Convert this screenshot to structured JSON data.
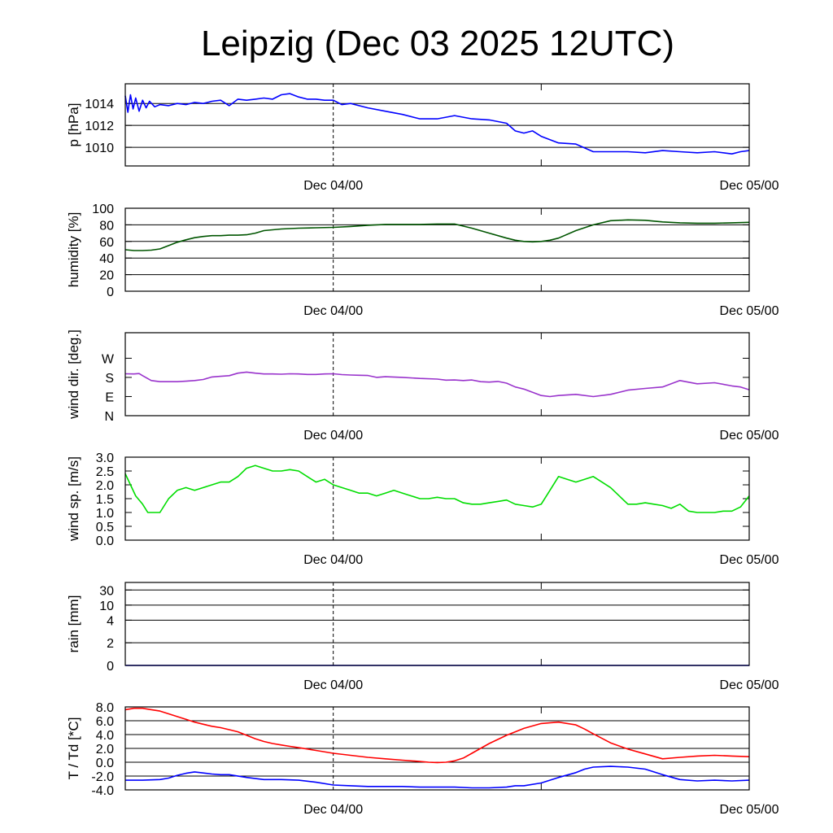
{
  "title": "Leipzig (Dec 03 2025 12UTC)",
  "x_axis": {
    "unit": "hours since Dec 03 12UTC",
    "range": [
      0,
      36
    ],
    "date_labels": [
      {
        "hour": 12,
        "label": "Dec 04/00"
      },
      {
        "hour": 36,
        "label": "Dec 05/00"
      }
    ],
    "now_marker_hour": 12,
    "minor_tick_hour": 24
  },
  "chart_data": [
    {
      "id": "pressure",
      "type": "line",
      "ylabel": "p [hPa]",
      "ylim": [
        1008.3,
        1015.8
      ],
      "yticks": [
        {
          "v": 1010,
          "l": "1010"
        },
        {
          "v": 1012,
          "l": "1012"
        },
        {
          "v": 1014,
          "l": "1014"
        }
      ],
      "grid_y": [
        1010,
        1012,
        1014
      ],
      "series": [
        {
          "name": "pressure",
          "color": "#0000ff",
          "x": [
            0,
            0.15,
            0.3,
            0.45,
            0.6,
            0.8,
            1,
            1.2,
            1.4,
            1.7,
            2,
            2.5,
            3,
            3.5,
            4,
            4.5,
            5,
            5.5,
            6,
            6.5,
            7,
            7.5,
            8,
            8.5,
            9,
            9.5,
            10,
            10.5,
            11,
            11.5,
            12,
            12.5,
            13,
            14,
            15,
            16,
            17,
            18,
            19,
            20,
            21,
            22,
            22.5,
            23,
            23.5,
            24,
            25,
            26,
            27,
            28,
            29,
            30,
            31,
            32,
            33,
            34,
            35,
            35.5,
            36
          ],
          "y": [
            1014.7,
            1013.2,
            1014.8,
            1013.5,
            1014.5,
            1013.3,
            1014.3,
            1013.6,
            1014.2,
            1013.7,
            1013.9,
            1013.8,
            1014.0,
            1013.9,
            1014.1,
            1014.0,
            1014.2,
            1014.3,
            1013.8,
            1014.4,
            1014.3,
            1014.4,
            1014.5,
            1014.4,
            1014.8,
            1014.9,
            1014.6,
            1014.4,
            1014.4,
            1014.3,
            1014.3,
            1013.9,
            1014.0,
            1013.6,
            1013.3,
            1013.0,
            1012.6,
            1012.6,
            1012.9,
            1012.6,
            1012.5,
            1012.2,
            1011.5,
            1011.3,
            1011.5,
            1011.0,
            1010.4,
            1010.3,
            1009.6,
            1009.6,
            1009.6,
            1009.5,
            1009.7,
            1009.6,
            1009.5,
            1009.6,
            1009.4,
            1009.6,
            1009.7
          ]
        }
      ]
    },
    {
      "id": "humidity",
      "type": "line",
      "ylabel": "humidity [%]",
      "ylim": [
        0,
        100
      ],
      "yticks": [
        {
          "v": 0,
          "l": "0"
        },
        {
          "v": 20,
          "l": "20"
        },
        {
          "v": 40,
          "l": "40"
        },
        {
          "v": 60,
          "l": "60"
        },
        {
          "v": 80,
          "l": "80"
        },
        {
          "v": 100,
          "l": "100"
        }
      ],
      "grid_y": [
        20,
        40,
        60,
        80
      ],
      "series": [
        {
          "name": "humidity",
          "color": "#005500",
          "x": [
            0,
            0.5,
            1,
            1.5,
            2,
            2.5,
            3,
            3.5,
            4,
            4.5,
            5,
            5.5,
            6,
            6.5,
            7,
            7.5,
            8,
            9,
            10,
            11,
            12,
            13,
            14,
            15,
            16,
            17,
            18,
            19,
            20,
            21,
            22,
            22.5,
            23,
            23.5,
            24,
            24.5,
            25,
            26,
            27,
            28,
            29,
            30,
            31,
            32,
            33,
            34,
            35,
            36
          ],
          "y": [
            50,
            49,
            49,
            49.5,
            51,
            55,
            59,
            62,
            64.5,
            66,
            67,
            67,
            67.5,
            67.5,
            68,
            70,
            73,
            75,
            76,
            76.5,
            77,
            78,
            79.5,
            80.5,
            80.5,
            80.5,
            81,
            81,
            76,
            70,
            64,
            61.5,
            60,
            59.5,
            60,
            61.5,
            64,
            73,
            80,
            85,
            86,
            85.5,
            83.5,
            82.5,
            82,
            82,
            82.5,
            83
          ]
        }
      ]
    },
    {
      "id": "wind_dir",
      "type": "line",
      "ylabel": "wind dir. [deg.]",
      "ylim": [
        0,
        390
      ],
      "yticks": [
        {
          "v": 0,
          "l": "N"
        },
        {
          "v": 90,
          "l": "E"
        },
        {
          "v": 180,
          "l": "S"
        },
        {
          "v": 270,
          "l": "W"
        }
      ],
      "grid_y": [],
      "series": [
        {
          "name": "wind direction",
          "color": "#9933cc",
          "x": [
            0,
            0.5,
            0.8,
            1,
            1.5,
            2,
            2.5,
            3,
            3.5,
            4,
            4.5,
            5,
            5.5,
            6,
            6.5,
            7,
            7.5,
            8,
            8.5,
            9,
            9.5,
            10,
            10.5,
            11,
            11.5,
            12,
            12.5,
            13,
            13.5,
            14,
            14.5,
            15,
            16,
            17,
            18,
            18.5,
            19,
            19.5,
            20,
            20.5,
            21,
            21.5,
            22,
            22.5,
            23,
            23.5,
            24,
            24.5,
            25,
            26,
            27,
            28,
            29,
            30,
            31,
            31.5,
            32,
            33,
            34,
            35,
            35.5,
            36
          ],
          "y": [
            197,
            196,
            198,
            188,
            165,
            160,
            160,
            160,
            162,
            165,
            170,
            182,
            185,
            188,
            200,
            205,
            200,
            196,
            196,
            195,
            197,
            196,
            194,
            194,
            196,
            197,
            193,
            191,
            190,
            189,
            180,
            183,
            180,
            175,
            172,
            167,
            168,
            165,
            168,
            160,
            158,
            161,
            153,
            135,
            125,
            110,
            95,
            90,
            95,
            100,
            90,
            100,
            120,
            128,
            135,
            150,
            165,
            150,
            155,
            140,
            135,
            122
          ]
        }
      ]
    },
    {
      "id": "wind_speed",
      "type": "line",
      "ylabel": "wind sp. [m/s]",
      "ylim": [
        0,
        3
      ],
      "yticks": [
        {
          "v": 0,
          "l": "0.0"
        },
        {
          "v": 0.5,
          "l": "0.5"
        },
        {
          "v": 1,
          "l": "1.0"
        },
        {
          "v": 1.5,
          "l": "1.5"
        },
        {
          "v": 2,
          "l": "2.0"
        },
        {
          "v": 2.5,
          "l": "2.5"
        },
        {
          "v": 3,
          "l": "3.0"
        }
      ],
      "grid_y": [],
      "series": [
        {
          "name": "wind speed",
          "color": "#00dd00",
          "x": [
            0,
            0.3,
            0.6,
            1,
            1.3,
            1.6,
            2,
            2.5,
            3,
            3.5,
            4,
            4.5,
            5,
            5.5,
            6,
            6.5,
            7,
            7.5,
            8,
            8.5,
            9,
            9.5,
            10,
            10.5,
            11,
            11.5,
            12,
            12.5,
            13,
            13.5,
            14,
            14.5,
            15,
            15.5,
            16,
            16.5,
            17,
            17.5,
            18,
            18.5,
            19,
            19.5,
            20,
            20.5,
            21,
            21.5,
            22,
            22.5,
            23,
            23.5,
            24,
            24.5,
            25,
            25.5,
            26,
            26.5,
            27,
            27.5,
            28,
            28.5,
            29,
            29.5,
            30,
            30.5,
            31,
            31.5,
            32,
            32.5,
            33,
            33.5,
            34,
            34.5,
            35,
            35.5,
            36
          ],
          "y": [
            2.4,
            2.0,
            1.6,
            1.3,
            1.0,
            1.0,
            1.0,
            1.5,
            1.8,
            1.9,
            1.8,
            1.9,
            2.0,
            2.1,
            2.1,
            2.3,
            2.6,
            2.7,
            2.6,
            2.5,
            2.5,
            2.55,
            2.5,
            2.3,
            2.1,
            2.2,
            2.0,
            1.9,
            1.8,
            1.7,
            1.7,
            1.6,
            1.7,
            1.8,
            1.7,
            1.6,
            1.5,
            1.5,
            1.55,
            1.5,
            1.5,
            1.35,
            1.3,
            1.3,
            1.35,
            1.4,
            1.45,
            1.3,
            1.25,
            1.2,
            1.3,
            1.8,
            2.3,
            2.2,
            2.1,
            2.2,
            2.3,
            2.1,
            1.9,
            1.6,
            1.3,
            1.3,
            1.35,
            1.3,
            1.25,
            1.15,
            1.3,
            1.05,
            1.0,
            1.0,
            1.0,
            1.05,
            1.05,
            1.2,
            1.6
          ]
        }
      ]
    },
    {
      "id": "rain",
      "type": "line",
      "ylabel": "rain [mm]",
      "ylim": [
        0,
        33
      ],
      "yticks": [
        {
          "v": 0,
          "l": "0"
        },
        {
          "v": 9,
          "l": "2"
        },
        {
          "v": 18,
          "l": "4"
        },
        {
          "v": 24,
          "l": "10"
        },
        {
          "v": 30,
          "l": "30"
        }
      ],
      "grid_y": [
        9,
        18,
        24,
        30
      ],
      "series": [
        {
          "name": "rain",
          "color": "#0000ff",
          "x": [
            0,
            36
          ],
          "y": [
            0,
            0
          ]
        }
      ]
    },
    {
      "id": "temperature",
      "type": "line",
      "ylabel": "T / Td [*C]",
      "ylim": [
        -4,
        8
      ],
      "yticks": [
        {
          "v": -4,
          "l": "-4.0"
        },
        {
          "v": -2,
          "l": "-2.0"
        },
        {
          "v": 0,
          "l": "0.0"
        },
        {
          "v": 2,
          "l": "2.0"
        },
        {
          "v": 4,
          "l": "4.0"
        },
        {
          "v": 6,
          "l": "6.0"
        },
        {
          "v": 8,
          "l": "8.0"
        }
      ],
      "grid_y": [
        -2,
        0,
        2,
        4,
        6
      ],
      "series": [
        {
          "name": "T",
          "color": "#ff0000",
          "x": [
            0,
            0.5,
            1,
            1.5,
            2,
            2.5,
            3,
            3.5,
            4,
            4.5,
            5,
            5.5,
            6,
            6.5,
            7,
            7.5,
            8,
            8.5,
            9,
            9.5,
            10,
            11,
            12,
            13,
            14,
            15,
            16,
            17,
            17.5,
            18,
            18.5,
            19,
            19.5,
            20,
            21,
            22,
            23,
            24,
            25,
            26,
            26.5,
            27,
            28,
            29,
            30,
            31,
            32,
            33,
            34,
            35,
            36
          ],
          "y": [
            7.6,
            7.8,
            7.8,
            7.6,
            7.4,
            7.0,
            6.6,
            6.2,
            5.8,
            5.5,
            5.2,
            5.0,
            4.7,
            4.4,
            3.9,
            3.4,
            3.0,
            2.7,
            2.5,
            2.3,
            2.1,
            1.7,
            1.3,
            1.0,
            0.7,
            0.5,
            0.3,
            0.1,
            0.0,
            -0.05,
            0.0,
            0.2,
            0.6,
            1.3,
            2.7,
            3.9,
            4.9,
            5.6,
            5.8,
            5.4,
            4.8,
            4.1,
            2.8,
            1.9,
            1.2,
            0.5,
            0.7,
            0.9,
            1.0,
            0.9,
            0.8
          ]
        },
        {
          "name": "Td",
          "color": "#0000ff",
          "x": [
            0,
            1,
            2,
            2.5,
            3,
            3.5,
            4,
            5,
            5.5,
            6,
            7,
            8,
            9,
            10,
            11,
            12,
            13,
            14,
            15,
            16,
            17,
            18,
            19,
            20,
            21,
            22,
            22.5,
            23,
            24,
            25,
            26,
            26.5,
            27,
            28,
            29,
            30,
            31,
            32,
            33,
            34,
            35,
            36
          ],
          "y": [
            -2.6,
            -2.6,
            -2.5,
            -2.3,
            -1.9,
            -1.6,
            -1.4,
            -1.7,
            -1.8,
            -1.8,
            -2.2,
            -2.5,
            -2.5,
            -2.6,
            -2.9,
            -3.3,
            -3.4,
            -3.5,
            -3.5,
            -3.5,
            -3.6,
            -3.6,
            -3.6,
            -3.7,
            -3.7,
            -3.6,
            -3.4,
            -3.4,
            -3.0,
            -2.2,
            -1.5,
            -1.0,
            -0.7,
            -0.6,
            -0.7,
            -1.0,
            -1.8,
            -2.5,
            -2.7,
            -2.6,
            -2.7,
            -2.6
          ]
        }
      ]
    }
  ]
}
